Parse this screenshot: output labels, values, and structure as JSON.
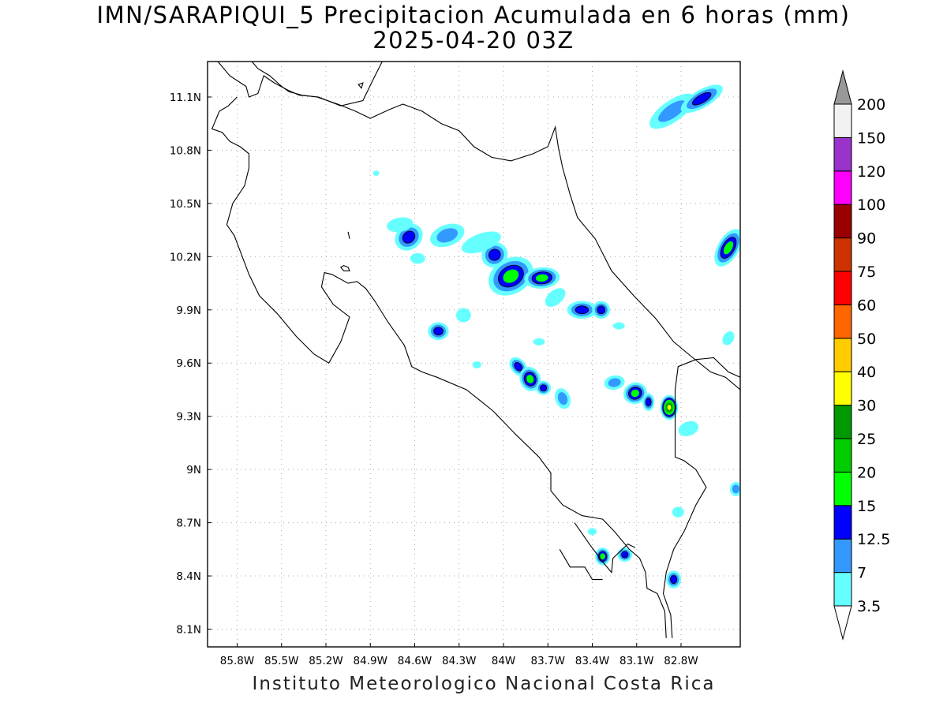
{
  "title": {
    "line1": "IMN/SARAPIQUI_5 Precipitacion Acumulada en 6 horas (mm)",
    "line2": "2025-04-20 03Z"
  },
  "credit": "Instituto Meteorologico Nacional Costa Rica",
  "map": {
    "lon_range": [
      -86.0,
      -82.4
    ],
    "lat_range": [
      8.0,
      11.3
    ],
    "x_ticks": [
      {
        "lon": -85.8,
        "label": "85.8W"
      },
      {
        "lon": -85.5,
        "label": "85.5W"
      },
      {
        "lon": -85.2,
        "label": "85.2W"
      },
      {
        "lon": -84.9,
        "label": "84.9W"
      },
      {
        "lon": -84.6,
        "label": "84.6W"
      },
      {
        "lon": -84.3,
        "label": "84.3W"
      },
      {
        "lon": -84.0,
        "label": "84W"
      },
      {
        "lon": -83.7,
        "label": "83.7W"
      },
      {
        "lon": -83.4,
        "label": "83.4W"
      },
      {
        "lon": -83.1,
        "label": "83.1W"
      },
      {
        "lon": -82.8,
        "label": "82.8W"
      }
    ],
    "y_ticks": [
      {
        "lat": 11.1,
        "label": "11.1N"
      },
      {
        "lat": 10.8,
        "label": "10.8N"
      },
      {
        "lat": 10.5,
        "label": "10.5N"
      },
      {
        "lat": 10.2,
        "label": "10.2N"
      },
      {
        "lat": 9.9,
        "label": "9.9N"
      },
      {
        "lat": 9.6,
        "label": "9.6N"
      },
      {
        "lat": 9.3,
        "label": "9.3N"
      },
      {
        "lat": 9.0,
        "label": "9N"
      },
      {
        "lat": 8.7,
        "label": "8.7N"
      },
      {
        "lat": 8.4,
        "label": "8.4N"
      },
      {
        "lat": 8.1,
        "label": "8.1N"
      }
    ],
    "grid": "dotted",
    "coastline": [
      [
        [
          -85.93,
          11.3
        ],
        [
          -85.85,
          11.22
        ],
        [
          -85.74,
          11.16
        ],
        [
          -85.72,
          11.1
        ],
        [
          -85.66,
          11.12
        ],
        [
          -85.62,
          11.22
        ],
        [
          -85.55,
          11.18
        ],
        [
          -85.46,
          11.14
        ],
        [
          -85.38,
          11.11
        ],
        [
          -85.25,
          11.1
        ],
        [
          -85.1,
          11.05
        ],
        [
          -84.95,
          11.08
        ],
        [
          -84.88,
          11.2
        ],
        [
          -84.82,
          11.3
        ]
      ],
      [
        [
          -85.7,
          11.3
        ],
        [
          -85.66,
          11.26
        ],
        [
          -85.58,
          11.22
        ],
        [
          -85.5,
          11.16
        ],
        [
          -85.45,
          11.13
        ],
        [
          -85.36,
          11.11
        ],
        [
          -85.26,
          11.1
        ],
        [
          -85.12,
          11.06
        ],
        [
          -85.0,
          11.02
        ],
        [
          -84.9,
          10.98
        ],
        [
          -84.77,
          11.03
        ],
        [
          -84.68,
          11.06
        ],
        [
          -84.55,
          11.02
        ],
        [
          -84.42,
          10.95
        ],
        [
          -84.3,
          10.91
        ],
        [
          -84.2,
          10.82
        ],
        [
          -84.08,
          10.76
        ],
        [
          -83.95,
          10.74
        ],
        [
          -83.8,
          10.78
        ],
        [
          -83.7,
          10.82
        ],
        [
          -83.65,
          10.93
        ],
        [
          -83.63,
          10.82
        ],
        [
          -83.6,
          10.7
        ],
        [
          -83.55,
          10.55
        ],
        [
          -83.5,
          10.42
        ],
        [
          -83.38,
          10.3
        ],
        [
          -83.27,
          10.12
        ],
        [
          -83.12,
          9.98
        ],
        [
          -82.97,
          9.85
        ],
        [
          -82.85,
          9.72
        ],
        [
          -82.72,
          9.63
        ],
        [
          -82.6,
          9.55
        ],
        [
          -82.5,
          9.52
        ],
        [
          -82.4,
          9.45
        ]
      ],
      [
        [
          -82.4,
          9.52
        ],
        [
          -82.48,
          9.55
        ],
        [
          -82.58,
          9.63
        ],
        [
          -82.7,
          9.62
        ],
        [
          -82.82,
          9.58
        ],
        [
          -82.84,
          9.45
        ],
        [
          -82.84,
          9.3
        ],
        [
          -82.84,
          9.07
        ],
        [
          -82.78,
          9.05
        ],
        [
          -82.7,
          9.0
        ],
        [
          -82.63,
          8.9
        ],
        [
          -82.7,
          8.8
        ],
        [
          -82.78,
          8.65
        ],
        [
          -82.85,
          8.55
        ],
        [
          -82.9,
          8.42
        ],
        [
          -82.92,
          8.3
        ],
        [
          -82.87,
          8.18
        ],
        [
          -82.86,
          8.05
        ]
      ],
      [
        [
          -82.9,
          8.05
        ],
        [
          -82.91,
          8.2
        ],
        [
          -82.96,
          8.3
        ],
        [
          -83.03,
          8.33
        ],
        [
          -83.04,
          8.42
        ],
        [
          -83.08,
          8.5
        ],
        [
          -83.15,
          8.55
        ],
        [
          -83.25,
          8.65
        ],
        [
          -83.33,
          8.72
        ],
        [
          -83.47,
          8.74
        ],
        [
          -83.6,
          8.8
        ],
        [
          -83.68,
          8.88
        ],
        [
          -83.68,
          8.98
        ],
        [
          -83.76,
          9.07
        ],
        [
          -83.92,
          9.2
        ],
        [
          -84.07,
          9.33
        ],
        [
          -84.25,
          9.45
        ],
        [
          -84.45,
          9.52
        ],
        [
          -84.55,
          9.55
        ],
        [
          -84.62,
          9.58
        ],
        [
          -84.67,
          9.7
        ],
        [
          -84.78,
          9.83
        ],
        [
          -84.87,
          9.95
        ],
        [
          -84.93,
          10.02
        ],
        [
          -84.99,
          10.06
        ],
        [
          -85.05,
          10.05
        ],
        [
          -85.16,
          10.1
        ],
        [
          -85.21,
          10.11
        ],
        [
          -85.23,
          10.03
        ],
        [
          -85.15,
          9.93
        ],
        [
          -85.04,
          9.86
        ],
        [
          -85.1,
          9.72
        ],
        [
          -85.18,
          9.6
        ],
        [
          -85.28,
          9.65
        ],
        [
          -85.4,
          9.75
        ],
        [
          -85.53,
          9.88
        ],
        [
          -85.65,
          9.98
        ],
        [
          -85.72,
          10.1
        ],
        [
          -85.82,
          10.32
        ],
        [
          -85.87,
          10.38
        ],
        [
          -85.83,
          10.5
        ],
        [
          -85.75,
          10.6
        ],
        [
          -85.72,
          10.7
        ],
        [
          -85.72,
          10.78
        ],
        [
          -85.78,
          10.82
        ],
        [
          -85.85,
          10.85
        ],
        [
          -85.9,
          10.9
        ],
        [
          -85.97,
          10.92
        ],
        [
          -85.92,
          11.02
        ],
        [
          -85.86,
          11.05
        ],
        [
          -85.8,
          11.1
        ]
      ],
      [
        [
          -85.05,
          10.34
        ],
        [
          -85.04,
          10.3
        ]
      ],
      [
        [
          -83.52,
          8.7
        ],
        [
          -83.42,
          8.58
        ],
        [
          -83.33,
          8.48
        ],
        [
          -83.27,
          8.42
        ],
        [
          -83.26,
          8.5
        ],
        [
          -83.16,
          8.58
        ],
        [
          -83.11,
          8.56
        ]
      ],
      [
        [
          -83.62,
          8.55
        ],
        [
          -83.55,
          8.45
        ],
        [
          -83.45,
          8.45
        ],
        [
          -83.4,
          8.38
        ],
        [
          -83.33,
          8.38
        ]
      ]
    ],
    "islands": [
      [
        [
          -85.08,
          10.15
        ],
        [
          -85.05,
          10.14
        ],
        [
          -85.04,
          10.12
        ],
        [
          -85.08,
          10.12
        ],
        [
          -85.1,
          10.14
        ]
      ],
      [
        [
          -84.98,
          11.17
        ],
        [
          -84.95,
          11.18
        ],
        [
          -84.96,
          11.15
        ]
      ]
    ]
  },
  "colorbar": {
    "levels": [
      "3.5",
      "7",
      "12.5",
      "15",
      "20",
      "25",
      "30",
      "40",
      "50",
      "60",
      "75",
      "90",
      "100",
      "120",
      "150",
      "200"
    ],
    "colors": [
      "#ffffff",
      "#66ffff",
      "#3399ff",
      "#0000ff",
      "#00ff00",
      "#00cc00",
      "#009900",
      "#ffff00",
      "#ffcc00",
      "#ff6600",
      "#ff0000",
      "#cc3300",
      "#990000",
      "#ff00ff",
      "#9933cc",
      "#f2f2f2",
      "#999999"
    ]
  },
  "precip_cells": [
    {
      "lon": -84.64,
      "lat": 10.31,
      "level": 3,
      "angle": -40,
      "size": [
        0.1,
        0.07
      ]
    },
    {
      "lon": -84.38,
      "lat": 10.32,
      "level": 2,
      "angle": -20,
      "size": [
        0.12,
        0.06
      ]
    },
    {
      "lon": -84.06,
      "lat": 10.21,
      "level": 3,
      "angle": -30,
      "size": [
        0.09,
        0.07
      ]
    },
    {
      "lon": -83.95,
      "lat": 10.09,
      "level": 4,
      "angle": -30,
      "size": [
        0.16,
        0.1
      ]
    },
    {
      "lon": -83.74,
      "lat": 10.08,
      "level": 4,
      "angle": -5,
      "size": [
        0.12,
        0.06
      ]
    },
    {
      "lon": -83.47,
      "lat": 9.9,
      "level": 3,
      "angle": 0,
      "size": [
        0.1,
        0.05
      ]
    },
    {
      "lon": -83.34,
      "lat": 9.9,
      "level": 3,
      "angle": 0,
      "size": [
        0.06,
        0.05
      ]
    },
    {
      "lon": -84.44,
      "lat": 9.78,
      "level": 3,
      "angle": 0,
      "size": [
        0.07,
        0.05
      ]
    },
    {
      "lon": -84.27,
      "lat": 9.87,
      "level": 1,
      "angle": 0,
      "size": [
        0.05,
        0.04
      ]
    },
    {
      "lon": -83.9,
      "lat": 9.58,
      "level": 3,
      "angle": -40,
      "size": [
        0.05,
        0.06
      ]
    },
    {
      "lon": -83.82,
      "lat": 9.51,
      "level": 4,
      "angle": -20,
      "size": [
        0.07,
        0.07
      ]
    },
    {
      "lon": -83.73,
      "lat": 9.46,
      "level": 3,
      "angle": 0,
      "size": [
        0.05,
        0.04
      ]
    },
    {
      "lon": -83.6,
      "lat": 9.4,
      "level": 2,
      "angle": -20,
      "size": [
        0.05,
        0.06
      ]
    },
    {
      "lon": -83.25,
      "lat": 9.49,
      "level": 2,
      "angle": -10,
      "size": [
        0.07,
        0.04
      ]
    },
    {
      "lon": -83.11,
      "lat": 9.43,
      "level": 4,
      "angle": -20,
      "size": [
        0.08,
        0.06
      ]
    },
    {
      "lon": -83.02,
      "lat": 9.38,
      "level": 3,
      "angle": 0,
      "size": [
        0.04,
        0.05
      ]
    },
    {
      "lon": -82.88,
      "lat": 9.35,
      "level": 7,
      "angle": 0,
      "size": [
        0.06,
        0.07
      ]
    },
    {
      "lon": -82.86,
      "lat": 11.02,
      "level": 2,
      "angle": -35,
      "size": [
        0.18,
        0.06
      ]
    },
    {
      "lon": -82.66,
      "lat": 11.09,
      "level": 3,
      "angle": -30,
      "size": [
        0.16,
        0.05
      ]
    },
    {
      "lon": -82.48,
      "lat": 10.25,
      "level": 4,
      "angle": -60,
      "size": [
        0.14,
        0.06
      ]
    },
    {
      "lon": -83.33,
      "lat": 8.51,
      "level": 4,
      "angle": 0,
      "size": [
        0.05,
        0.05
      ]
    },
    {
      "lon": -83.18,
      "lat": 8.52,
      "level": 3,
      "angle": 0,
      "size": [
        0.05,
        0.04
      ]
    },
    {
      "lon": -82.85,
      "lat": 8.38,
      "level": 3,
      "angle": 0,
      "size": [
        0.05,
        0.05
      ]
    },
    {
      "lon": -84.58,
      "lat": 10.19,
      "level": 1,
      "angle": 0,
      "size": [
        0.05,
        0.03
      ]
    },
    {
      "lon": -84.7,
      "lat": 10.38,
      "level": 1,
      "angle": -10,
      "size": [
        0.09,
        0.04
      ]
    },
    {
      "lon": -84.15,
      "lat": 10.28,
      "level": 1,
      "angle": -20,
      "size": [
        0.14,
        0.05
      ]
    },
    {
      "lon": -83.65,
      "lat": 9.97,
      "level": 1,
      "angle": -40,
      "size": [
        0.08,
        0.04
      ]
    },
    {
      "lon": -83.76,
      "lat": 9.72,
      "level": 1,
      "angle": 0,
      "size": [
        0.04,
        0.02
      ]
    },
    {
      "lon": -83.22,
      "lat": 9.81,
      "level": 1,
      "angle": 0,
      "size": [
        0.04,
        0.02
      ]
    },
    {
      "lon": -82.75,
      "lat": 9.23,
      "level": 1,
      "angle": -20,
      "size": [
        0.07,
        0.04
      ]
    },
    {
      "lon": -82.43,
      "lat": 8.89,
      "level": 2,
      "angle": 0,
      "size": [
        0.04,
        0.04
      ]
    },
    {
      "lon": -82.48,
      "lat": 9.74,
      "level": 1,
      "angle": -60,
      "size": [
        0.05,
        0.03
      ]
    },
    {
      "lon": -82.82,
      "lat": 8.76,
      "level": 1,
      "angle": 0,
      "size": [
        0.04,
        0.03
      ]
    },
    {
      "lon": -84.18,
      "lat": 9.59,
      "level": 1,
      "angle": 0,
      "size": [
        0.03,
        0.02
      ]
    },
    {
      "lon": -84.86,
      "lat": 10.67,
      "level": 1,
      "angle": 0,
      "size": [
        0.02,
        0.015
      ]
    },
    {
      "lon": -83.4,
      "lat": 8.65,
      "level": 1,
      "angle": 0,
      "size": [
        0.03,
        0.02
      ]
    }
  ]
}
